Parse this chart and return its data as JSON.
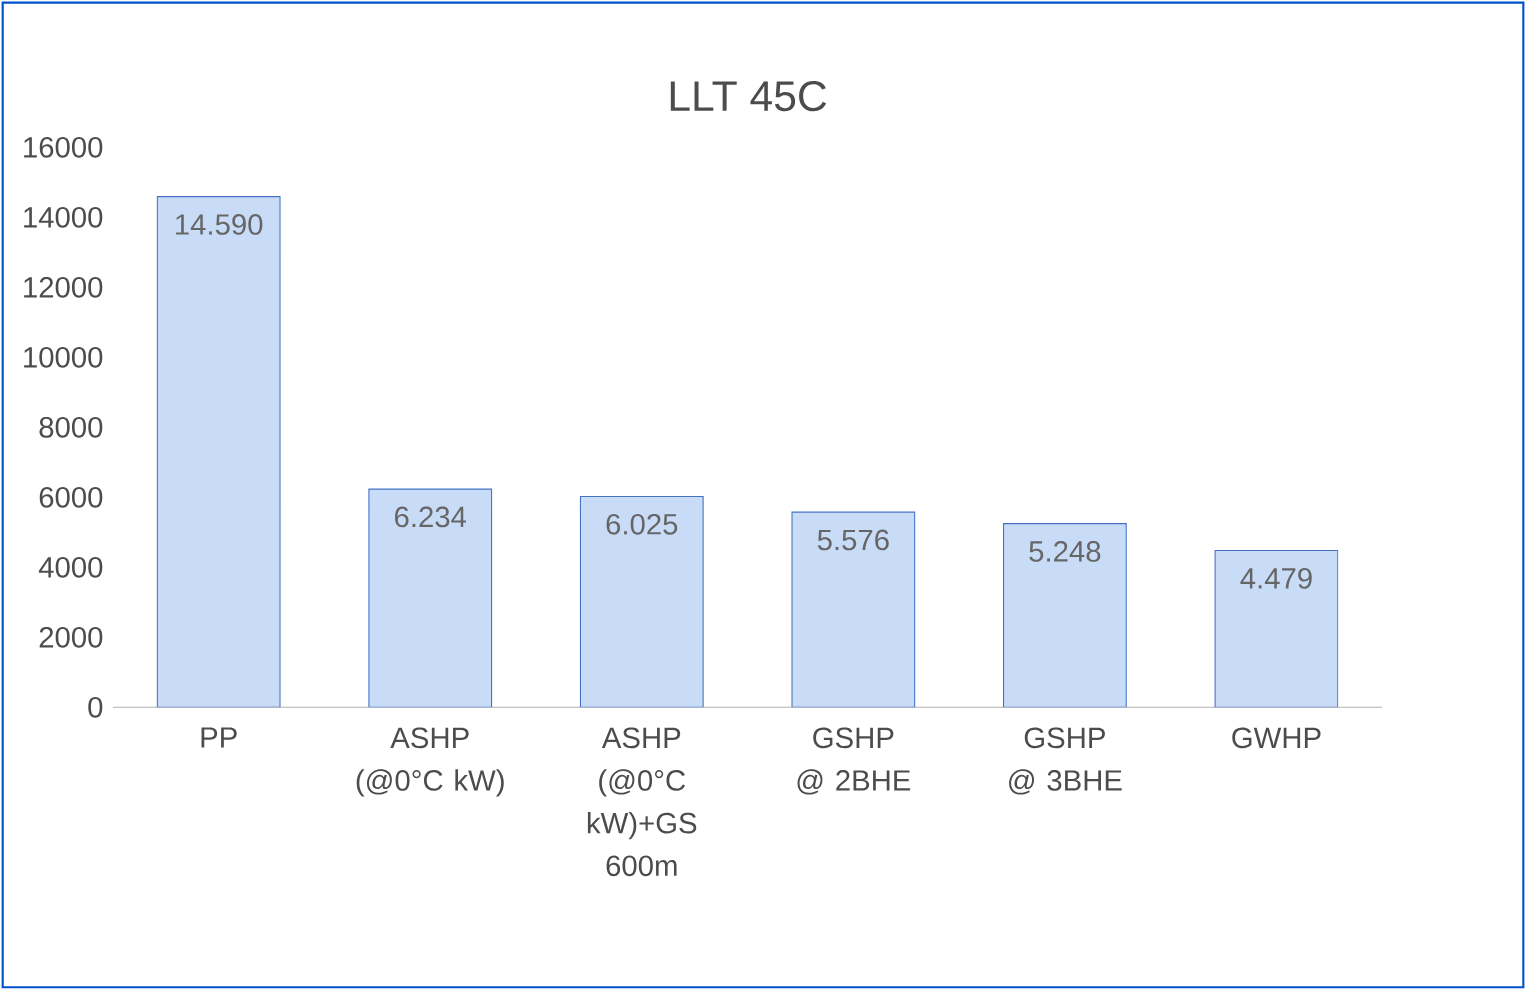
{
  "chart_data": {
    "type": "bar",
    "title": "LLT 45C",
    "categories": [
      "PP",
      "ASHP (@0°C kW)",
      "ASHP (@0°C kW)+GS 600m",
      "GSHP @ 2BHE",
      "GSHP @ 3BHE",
      "GWHP"
    ],
    "values": [
      14590,
      6234,
      6025,
      5576,
      5248,
      4479
    ],
    "value_labels": [
      "14.590",
      "6.234",
      "6.025",
      "5.576",
      "5.248",
      "4.479"
    ],
    "color": "#c9dcf7",
    "ylim": [
      0,
      16000
    ],
    "yticks": [
      0,
      2000,
      4000,
      6000,
      8000,
      10000,
      12000,
      14000,
      16000
    ],
    "grid": false
  }
}
